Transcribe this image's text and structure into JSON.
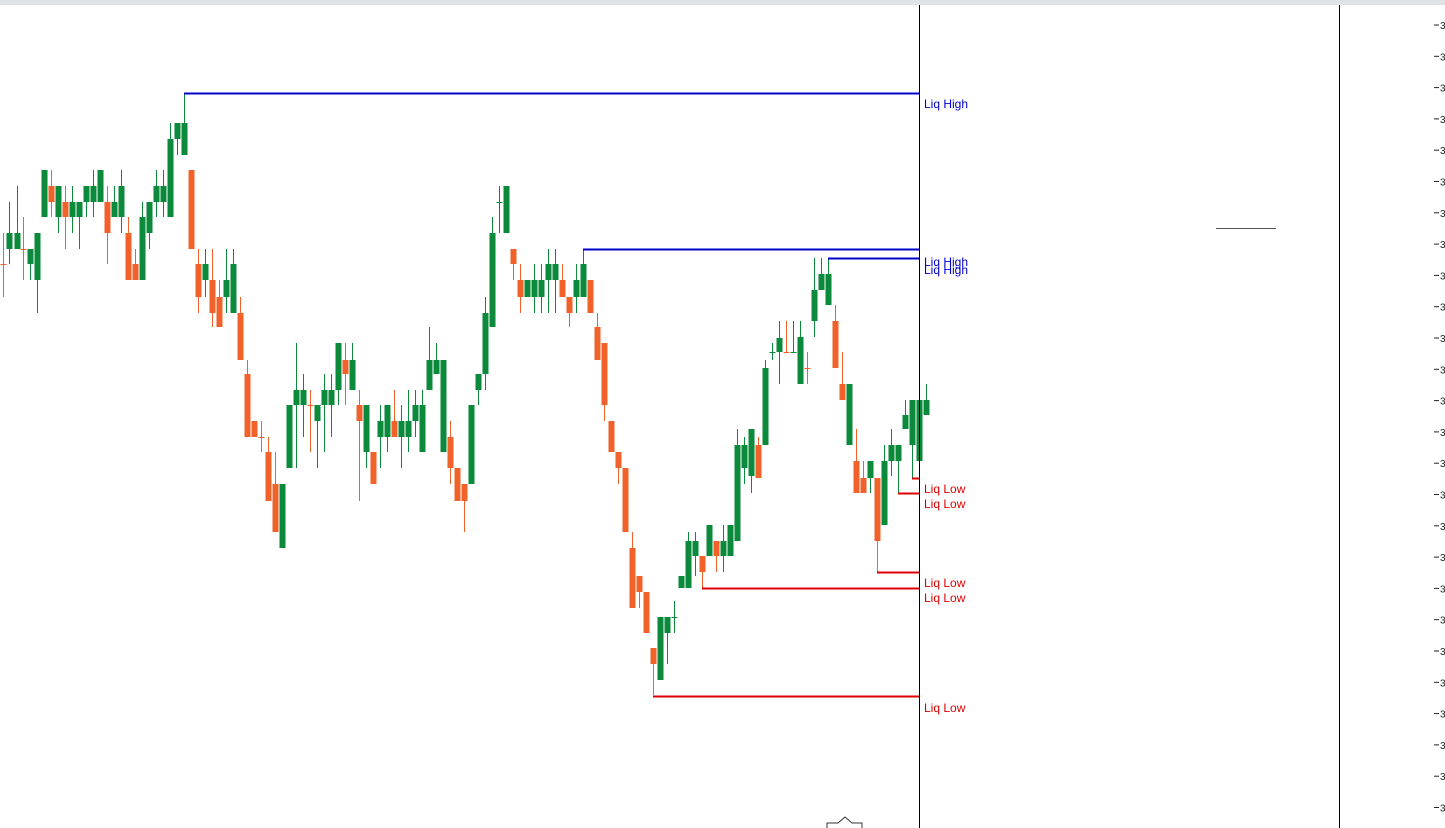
{
  "colors": {
    "bull": "#0a8a3a",
    "bear": "#f0622a",
    "liq_high": "#0000cc",
    "liq_low": "#dd0000",
    "divider": "#000000",
    "axis_tick": "#222222"
  },
  "chart_data": {
    "type": "candlestick",
    "title": "",
    "xlabel": "",
    "ylabel": "",
    "ylim": [
      0,
      828
    ],
    "price_axis": {
      "tick_label": "3",
      "tick_count": 26
    },
    "candles": [
      [
        3,
        233,
        264,
        249,
        297
      ],
      [
        9,
        202,
        233,
        249,
        264
      ],
      [
        17,
        186,
        233,
        249,
        249
      ],
      [
        23,
        217,
        249,
        249,
        280
      ],
      [
        30,
        249,
        249,
        264,
        280
      ],
      [
        37,
        233,
        233,
        280,
        313
      ],
      [
        44,
        170,
        170,
        217,
        217
      ],
      [
        51,
        170,
        186,
        202,
        217
      ],
      [
        58,
        186,
        186,
        217,
        233
      ],
      [
        65,
        186,
        202,
        217,
        249
      ],
      [
        72,
        186,
        202,
        217,
        233
      ],
      [
        79,
        202,
        202,
        217,
        249
      ],
      [
        86,
        186,
        186,
        202,
        217
      ],
      [
        93,
        170,
        186,
        202,
        217
      ],
      [
        100,
        170,
        170,
        202,
        202
      ],
      [
        107,
        186,
        202,
        233,
        264
      ],
      [
        114,
        186,
        202,
        217,
        217
      ],
      [
        121,
        170,
        186,
        217,
        233
      ],
      [
        128,
        217,
        233,
        280,
        280
      ],
      [
        135,
        249,
        264,
        280,
        280
      ],
      [
        142,
        202,
        217,
        280,
        280
      ],
      [
        149,
        202,
        202,
        233,
        249
      ],
      [
        156,
        170,
        186,
        202,
        217
      ],
      [
        163,
        170,
        186,
        202,
        217
      ],
      [
        170,
        123,
        139,
        217,
        217
      ],
      [
        177,
        123,
        123,
        139,
        155
      ],
      [
        184,
        93,
        123,
        155,
        155
      ],
      [
        191,
        170,
        170,
        249,
        249
      ],
      [
        198,
        249,
        264,
        297,
        313
      ],
      [
        205,
        249,
        264,
        280,
        297
      ],
      [
        212,
        249,
        280,
        313,
        327
      ],
      [
        219,
        280,
        297,
        327,
        327
      ],
      [
        226,
        249,
        280,
        297,
        313
      ],
      [
        233,
        249,
        264,
        313,
        313
      ],
      [
        240,
        297,
        313,
        360,
        360
      ],
      [
        247,
        360,
        374,
        437,
        437
      ],
      [
        254,
        421,
        421,
        437,
        437
      ],
      [
        261,
        421,
        437,
        437,
        452
      ],
      [
        268,
        437,
        452,
        501,
        501
      ],
      [
        275,
        452,
        484,
        532,
        532
      ],
      [
        282,
        484,
        484,
        548,
        548
      ],
      [
        289,
        405,
        405,
        468,
        468
      ],
      [
        296,
        343,
        390,
        405,
        468
      ],
      [
        303,
        374,
        390,
        405,
        437
      ],
      [
        310,
        390,
        405,
        405,
        452
      ],
      [
        317,
        405,
        405,
        421,
        468
      ],
      [
        324,
        374,
        390,
        405,
        452
      ],
      [
        331,
        374,
        390,
        405,
        437
      ],
      [
        338,
        343,
        343,
        390,
        405
      ],
      [
        345,
        343,
        360,
        374,
        405
      ],
      [
        352,
        343,
        360,
        390,
        390
      ],
      [
        359,
        390,
        405,
        421,
        501
      ],
      [
        366,
        405,
        405,
        452,
        468
      ],
      [
        373,
        452,
        452,
        484,
        484
      ],
      [
        380,
        405,
        421,
        437,
        468
      ],
      [
        387,
        405,
        405,
        437,
        452
      ],
      [
        394,
        390,
        421,
        437,
        437
      ],
      [
        401,
        405,
        421,
        437,
        468
      ],
      [
        408,
        390,
        421,
        437,
        452
      ],
      [
        415,
        390,
        405,
        421,
        437
      ],
      [
        422,
        390,
        405,
        452,
        452
      ],
      [
        429,
        327,
        360,
        390,
        390
      ],
      [
        436,
        343,
        360,
        374,
        374
      ],
      [
        443,
        360,
        360,
        452,
        452
      ],
      [
        450,
        421,
        437,
        468,
        484
      ],
      [
        457,
        468,
        468,
        501,
        501
      ],
      [
        464,
        484,
        484,
        501,
        532
      ],
      [
        471,
        405,
        405,
        484,
        484
      ],
      [
        478,
        374,
        374,
        390,
        405
      ],
      [
        485,
        297,
        313,
        374,
        390
      ],
      [
        492,
        217,
        233,
        327,
        327
      ],
      [
        499,
        186,
        202,
        202,
        233
      ],
      [
        506,
        186,
        186,
        233,
        233
      ],
      [
        513,
        249,
        249,
        264,
        280
      ],
      [
        520,
        264,
        280,
        297,
        313
      ],
      [
        527,
        280,
        280,
        297,
        297
      ],
      [
        534,
        264,
        280,
        297,
        313
      ],
      [
        541,
        264,
        280,
        297,
        313
      ],
      [
        548,
        249,
        264,
        280,
        313
      ],
      [
        555,
        249,
        264,
        280,
        313
      ],
      [
        562,
        264,
        280,
        297,
        297
      ],
      [
        569,
        297,
        297,
        313,
        327
      ],
      [
        576,
        264,
        280,
        297,
        313
      ],
      [
        583,
        249,
        264,
        297,
        297
      ],
      [
        590,
        280,
        280,
        313,
        313
      ],
      [
        597,
        313,
        327,
        360,
        360
      ],
      [
        604,
        343,
        343,
        405,
        421
      ],
      [
        611,
        421,
        421,
        452,
        452
      ],
      [
        618,
        452,
        452,
        468,
        484
      ],
      [
        625,
        468,
        468,
        532,
        532
      ],
      [
        632,
        532,
        548,
        608,
        608
      ],
      [
        639,
        576,
        576,
        592,
        608
      ],
      [
        646,
        592,
        592,
        633,
        633
      ],
      [
        653,
        648,
        648,
        664,
        695
      ],
      [
        660,
        617,
        617,
        680,
        680
      ],
      [
        667,
        617,
        617,
        633,
        664
      ],
      [
        674,
        601,
        617,
        617,
        633
      ],
      [
        681,
        576,
        576,
        588,
        588
      ],
      [
        688,
        532,
        541,
        588,
        588
      ],
      [
        695,
        532,
        541,
        556,
        576
      ],
      [
        702,
        556,
        556,
        572,
        588
      ],
      [
        709,
        525,
        525,
        556,
        556
      ],
      [
        716,
        541,
        541,
        556,
        572
      ],
      [
        723,
        525,
        541,
        556,
        572
      ],
      [
        730,
        525,
        525,
        556,
        556
      ],
      [
        737,
        429,
        445,
        541,
        541
      ],
      [
        744,
        437,
        445,
        468,
        484
      ],
      [
        751,
        429,
        429,
        476,
        493
      ],
      [
        758,
        437,
        445,
        478,
        478
      ],
      [
        765,
        360,
        368,
        445,
        445
      ],
      [
        772,
        343,
        352,
        352,
        360
      ],
      [
        779,
        321,
        338,
        352,
        384
      ],
      [
        786,
        321,
        352,
        352,
        352
      ],
      [
        793,
        321,
        352,
        352,
        352
      ],
      [
        800,
        321,
        337,
        384,
        384
      ],
      [
        807,
        352,
        368,
        368,
        384
      ],
      [
        814,
        258,
        290,
        321,
        337
      ],
      [
        821,
        258,
        274,
        290,
        290
      ],
      [
        828,
        258,
        274,
        305,
        305
      ],
      [
        835,
        305,
        321,
        368,
        368
      ],
      [
        842,
        352,
        384,
        400,
        400
      ],
      [
        849,
        384,
        384,
        445,
        445
      ],
      [
        856,
        429,
        461,
        493,
        493
      ],
      [
        863,
        461,
        478,
        493,
        493
      ],
      [
        870,
        461,
        461,
        478,
        493
      ],
      [
        877,
        478,
        478,
        541,
        572
      ],
      [
        884,
        445,
        461,
        525,
        525
      ],
      [
        891,
        429,
        445,
        461,
        476
      ],
      [
        898,
        445,
        445,
        461,
        493
      ],
      [
        905,
        400,
        415,
        429,
        429
      ],
      [
        912,
        400,
        400,
        445,
        478
      ],
      [
        919,
        400,
        400,
        461,
        461
      ],
      [
        926,
        384,
        400,
        415,
        415
      ]
    ],
    "levels": [
      {
        "label": "Liq High",
        "side": "high",
        "x_start": 184,
        "y": 93,
        "text_y": 104
      },
      {
        "label": "Liq High",
        "side": "high",
        "x_start": 583,
        "y": 249,
        "text_y": 262
      },
      {
        "label": "Liq High",
        "side": "high",
        "x_start": 828,
        "y": 258,
        "text_y": 270
      },
      {
        "label": "Liq Low",
        "side": "low",
        "x_start": 912,
        "y": 478,
        "text_y": 489
      },
      {
        "label": "Liq Low",
        "side": "low",
        "x_start": 898,
        "y": 493,
        "text_y": 504
      },
      {
        "label": "Liq Low",
        "side": "low",
        "x_start": 877,
        "y": 572,
        "text_y": 583
      },
      {
        "label": "Liq Low",
        "side": "low",
        "x_start": 702,
        "y": 588,
        "text_y": 598
      },
      {
        "label": "Liq Low",
        "side": "low",
        "x_start": 653,
        "y": 696,
        "text_y": 708
      }
    ],
    "level_end_x": 919,
    "grid": false
  }
}
